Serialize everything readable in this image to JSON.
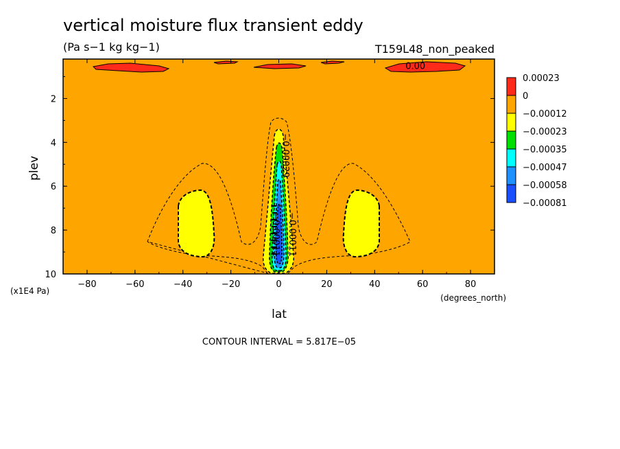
{
  "chart_data": {
    "type": "contour",
    "title": "vertical moisture flux transient eddy",
    "units": "(Pa s−1 kg kg−1)",
    "run_label": "T159L48_non_peaked",
    "xlabel": "lat",
    "x_units": "(degrees_north)",
    "ylabel": "plev",
    "y_units": "(x1E4 Pa)",
    "xlim": [
      -90,
      90
    ],
    "ylim": [
      0.2,
      10
    ],
    "y_inverted": true,
    "x_ticks": [
      -80,
      -60,
      -40,
      -20,
      0,
      20,
      40,
      60,
      80
    ],
    "x_tick_labels": [
      "−80",
      "−60",
      "−40",
      "−20",
      "0",
      "20",
      "40",
      "60",
      "80"
    ],
    "y_ticks": [
      2,
      4,
      6,
      8,
      10
    ],
    "y_tick_labels": [
      "2",
      "4",
      "6",
      "8",
      "10"
    ],
    "contour_interval_text": "CONTOUR INTERVAL = 5.817E−05",
    "colorbar": {
      "levels": [
        "0.00023",
        "0",
        "−0.00012",
        "−0.00023",
        "−0.00035",
        "−0.00047",
        "−0.00058",
        "−0.00081"
      ],
      "colors": [
        "#ff2a1a",
        "#ffa500",
        "#ffff00",
        "#00e000",
        "#00ffff",
        "#1e90ff",
        "#1a4fff"
      ]
    },
    "contour_labels": [
      {
        "text": "0.00",
        "x": 57,
        "y": 0.65,
        "angle": 0
      },
      {
        "text": "−0.00029",
        "x": 1.5,
        "y": 4.6,
        "angle": 90
      },
      {
        "text": "−0.00011",
        "x": 4.5,
        "y": 8.2,
        "angle": 90
      },
      {
        "text": "−0.00011",
        "x": -2.5,
        "y": 8.2,
        "angle": 90
      }
    ],
    "positive_regions": [
      {
        "lat_range": [
          -75,
          -45
        ],
        "plev_peak": 0.5
      },
      {
        "lat_range": [
          -28,
          -12
        ],
        "plev_peak": 0.3
      },
      {
        "lat_range": [
          -10,
          12
        ],
        "plev_peak": 0.4
      },
      {
        "lat_range": [
          18,
          27
        ],
        "plev_peak": 0.3
      },
      {
        "lat_range": [
          43,
          75
        ],
        "plev_peak": 0.5
      }
    ],
    "negative_minima": [
      {
        "lat": -32,
        "plev": 7.6,
        "value_band": "−0.00012 to −0.00023"
      },
      {
        "lat": 32,
        "plev": 7.6,
        "value_band": "−0.00012 to −0.00023"
      },
      {
        "lat": 0,
        "plev": 8.5,
        "value_band": "below −0.00058"
      }
    ]
  }
}
